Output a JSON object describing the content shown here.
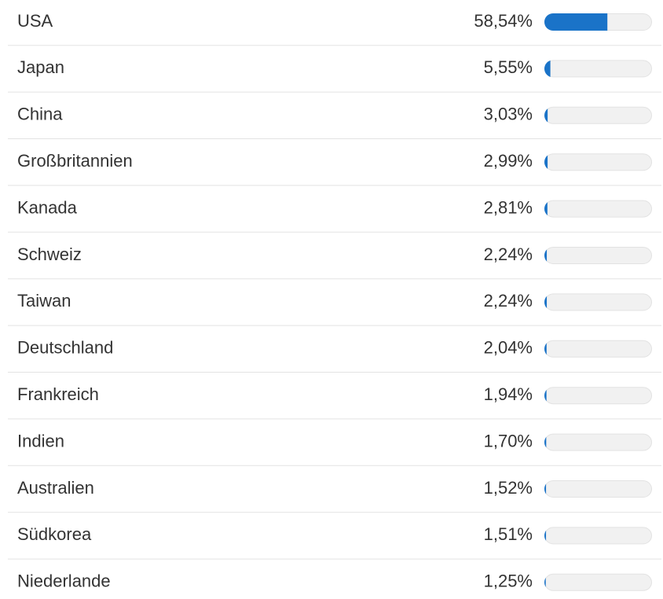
{
  "chart_data": {
    "type": "bar",
    "orientation": "horizontal",
    "categories": [
      "USA",
      "Japan",
      "China",
      "Großbritannien",
      "Kanada",
      "Schweiz",
      "Taiwan",
      "Deutschland",
      "Frankreich",
      "Indien",
      "Australien",
      "Südkorea",
      "Niederlande"
    ],
    "values": [
      58.54,
      5.55,
      3.03,
      2.99,
      2.81,
      2.24,
      2.24,
      2.04,
      1.94,
      1.7,
      1.52,
      1.51,
      1.25
    ],
    "value_labels": [
      "58,54%",
      "5,55%",
      "3,03%",
      "2,99%",
      "2,81%",
      "2,24%",
      "2,24%",
      "2,04%",
      "1,94%",
      "1,70%",
      "1,52%",
      "1,51%",
      "1,25%"
    ],
    "color": "#1a73c8",
    "xlim": [
      0,
      100
    ]
  }
}
